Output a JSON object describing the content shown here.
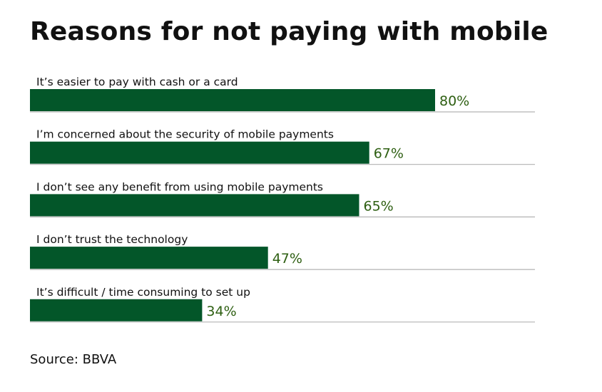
{
  "colors": {
    "bar": "#035629",
    "value_text": "#2e5f12",
    "divider": "#b3b3b3"
  },
  "chart_data": {
    "type": "bar",
    "orientation": "horizontal",
    "title": "Reasons for not paying with mobile",
    "categories": [
      "It’s easier to pay with cash or a card",
      "I’m concerned about the security of mobile payments",
      "I don’t see any benefit from using mobile payments",
      "I don’t trust the technology",
      "It’s difficult / time consuming to set up"
    ],
    "values": [
      80,
      67,
      65,
      47,
      34
    ],
    "value_labels": [
      "80%",
      "67%",
      "65%",
      "47%",
      "34%"
    ],
    "unit": "%",
    "xlim": [
      0,
      100
    ],
    "grid": false,
    "legend": "none",
    "source": "Source: BBVA"
  }
}
